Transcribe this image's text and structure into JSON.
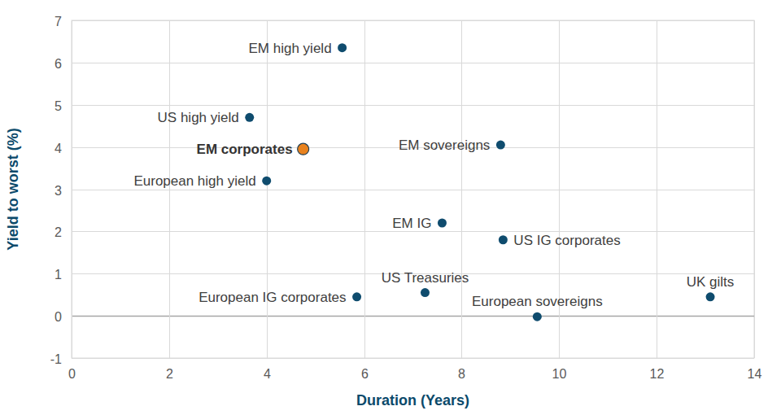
{
  "chart_data": {
    "type": "scatter",
    "x_label": "Duration (Years)",
    "y_label": "Yield to worst (%)",
    "labels": [
      "EM high yield",
      "US high yield",
      "EM corporates",
      "European high yield",
      "EM sovereigns",
      "EM IG",
      "US IG corporates",
      "US Treasuries",
      "European IG corporates",
      "European sovereigns",
      "UK gilts"
    ],
    "x": [
      5.55,
      3.65,
      4.75,
      4.0,
      8.8,
      7.6,
      8.85,
      7.25,
      5.85,
      9.55,
      13.1
    ],
    "values": [
      6.35,
      4.7,
      3.95,
      3.2,
      4.05,
      2.2,
      1.8,
      0.55,
      0.45,
      -0.02,
      0.45
    ],
    "colors": [
      "#0f4c6e",
      "#0f4c6e",
      "#e8821e",
      "#0f4c6e",
      "#0f4c6e",
      "#0f4c6e",
      "#0f4c6e",
      "#0f4c6e",
      "#0f4c6e",
      "#0f4c6e",
      "#0f4c6e"
    ],
    "xlim": [
      0,
      14
    ],
    "xticks": [
      0,
      2,
      4,
      6,
      8,
      10,
      12,
      14
    ],
    "ylim": [
      -1,
      7
    ],
    "yticks": [
      -1,
      0,
      1,
      2,
      3,
      4,
      5,
      6,
      7
    ],
    "grid": true
  }
}
